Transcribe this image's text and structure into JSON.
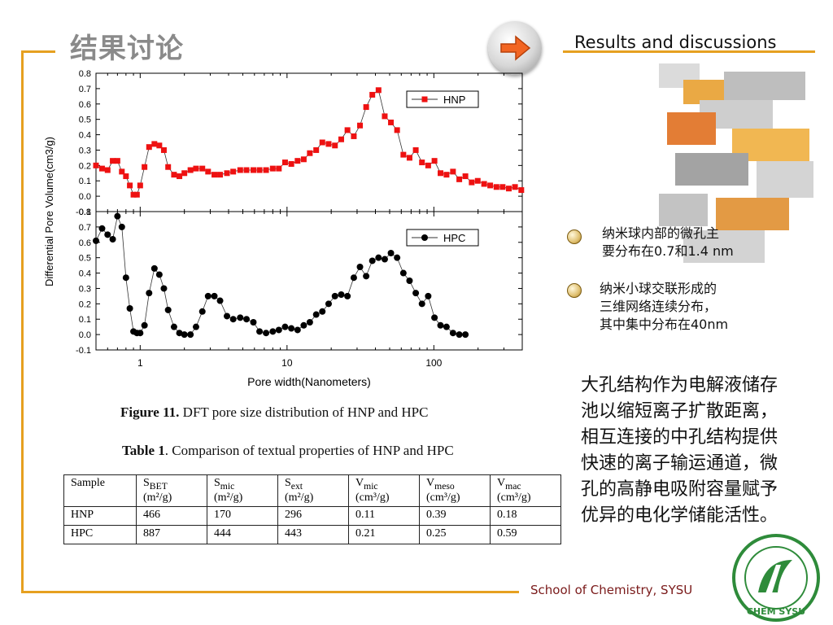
{
  "header": {
    "title_cn": "结果讨论",
    "title_en": "Results and discussions"
  },
  "colors": {
    "frame": "#e6a020",
    "hnp": "#ee1111",
    "hpc": "#000000",
    "footer": "#7a1a1a"
  },
  "icons": {
    "nav": "right-arrow-icon"
  },
  "chart_data": [
    {
      "type": "line",
      "ylabel": "Differential Pore Volume(cm3/g)",
      "xscale": "log",
      "xlim": [
        0.5,
        400
      ],
      "ylim": [
        -0.1,
        0.8
      ],
      "yticks": [
        "0.8",
        "0.7",
        "0.6",
        "0.5",
        "0.4",
        "0.3",
        "0.2",
        "0.1",
        "0.0",
        "-0.1"
      ],
      "legend": "top-right",
      "series": [
        {
          "name": "HNP",
          "marker": "square",
          "x": [
            0.5,
            0.55,
            0.6,
            0.65,
            0.7,
            0.75,
            0.8,
            0.85,
            0.9,
            0.95,
            1.0,
            1.07,
            1.15,
            1.25,
            1.35,
            1.45,
            1.55,
            1.7,
            1.85,
            2.0,
            2.2,
            2.4,
            2.65,
            2.9,
            3.2,
            3.5,
            3.9,
            4.3,
            4.8,
            5.3,
            5.9,
            6.5,
            7.2,
            8.0,
            8.8,
            9.7,
            10.7,
            11.8,
            13,
            14.3,
            15.8,
            17.4,
            19.2,
            21.2,
            23.4,
            25.8,
            28.5,
            31.4,
            34.6,
            38.1,
            42,
            46.3,
            51,
            56.2,
            62,
            68.3,
            75.3,
            83,
            91.5,
            101,
            111,
            122,
            135,
            149,
            164,
            181,
            199,
            220,
            242,
            267,
            294,
            324,
            357,
            394
          ],
          "y": [
            0.2,
            0.18,
            0.17,
            0.23,
            0.23,
            0.16,
            0.13,
            0.07,
            0.01,
            0.01,
            0.07,
            0.19,
            0.32,
            0.34,
            0.33,
            0.3,
            0.19,
            0.14,
            0.13,
            0.15,
            0.17,
            0.18,
            0.18,
            0.16,
            0.14,
            0.14,
            0.15,
            0.16,
            0.17,
            0.17,
            0.17,
            0.17,
            0.17,
            0.18,
            0.18,
            0.22,
            0.21,
            0.23,
            0.24,
            0.28,
            0.3,
            0.35,
            0.34,
            0.33,
            0.37,
            0.43,
            0.39,
            0.46,
            0.58,
            0.66,
            0.69,
            0.52,
            0.48,
            0.43,
            0.27,
            0.25,
            0.3,
            0.22,
            0.2,
            0.23,
            0.15,
            0.14,
            0.16,
            0.11,
            0.13,
            0.09,
            0.1,
            0.08,
            0.07,
            0.06,
            0.06,
            0.05,
            0.06,
            0.04
          ]
        },
        {
          "name": "HPC",
          "marker": "circle",
          "x": [
            0.5,
            0.55,
            0.6,
            0.65,
            0.7,
            0.75,
            0.8,
            0.85,
            0.9,
            0.95,
            1.0,
            1.07,
            1.15,
            1.25,
            1.35,
            1.45,
            1.55,
            1.7,
            1.85,
            2.0,
            2.2,
            2.4,
            2.65,
            2.9,
            3.2,
            3.5,
            3.9,
            4.3,
            4.8,
            5.3,
            5.9,
            6.5,
            7.2,
            8.0,
            8.8,
            9.7,
            10.7,
            11.8,
            13,
            14.3,
            15.8,
            17.4,
            19.2,
            21.2,
            23.4,
            25.8,
            28.5,
            31.4,
            34.6,
            38.1,
            42,
            46.3,
            51,
            56.2,
            62,
            68.3,
            75.3,
            83,
            91.5,
            101,
            111,
            122,
            135,
            149,
            164
          ],
          "y": [
            0.61,
            0.69,
            0.65,
            0.62,
            0.77,
            0.7,
            0.37,
            0.17,
            0.02,
            0.01,
            0.01,
            0.06,
            0.27,
            0.43,
            0.39,
            0.3,
            0.16,
            0.05,
            0.01,
            0.0,
            0.0,
            0.05,
            0.15,
            0.25,
            0.25,
            0.22,
            0.12,
            0.1,
            0.11,
            0.1,
            0.08,
            0.02,
            0.01,
            0.02,
            0.03,
            0.05,
            0.04,
            0.03,
            0.06,
            0.08,
            0.13,
            0.15,
            0.2,
            0.25,
            0.26,
            0.25,
            0.37,
            0.44,
            0.38,
            0.48,
            0.5,
            0.49,
            0.53,
            0.5,
            0.4,
            0.35,
            0.27,
            0.2,
            0.25,
            0.11,
            0.06,
            0.05,
            0.01,
            0.0,
            0.0
          ]
        }
      ],
      "xticks": [
        "1",
        "10",
        "100"
      ],
      "xlabel": "Pore width(Nanometers)"
    }
  ],
  "captions": {
    "figure_label": "Figure 11.",
    "figure_text": " DFT pore size distribution of HNP and HPC",
    "table_label": "Table 1",
    "table_text": ". Comparison of textual properties of HNP and HPC"
  },
  "table": {
    "headers": [
      {
        "main": "Sample",
        "sub": "",
        "unit": ""
      },
      {
        "main": "S",
        "sub": "BET",
        "unit": "(m²/g)"
      },
      {
        "main": "S",
        "sub": "mic",
        "unit": "(m²/g)"
      },
      {
        "main": "S",
        "sub": "ext",
        "unit": "(m²/g)"
      },
      {
        "main": "V",
        "sub": "mic",
        "unit": "(cm³/g)"
      },
      {
        "main": "V",
        "sub": "meso",
        "unit": "(cm³/g)"
      },
      {
        "main": "V",
        "sub": "mac",
        "unit": "(cm³/g)"
      }
    ],
    "rows": [
      [
        "HNP",
        "466",
        "170",
        "296",
        "0.11",
        "0.39",
        "0.18"
      ],
      [
        "HPC",
        "887",
        "444",
        "443",
        "0.21",
        "0.25",
        "0.59"
      ]
    ]
  },
  "bullets": [
    {
      "line1": "纳米球内部的微孔主",
      "line2": "要分布在0.7和1.4 nm",
      "line3": ""
    },
    {
      "line1": "纳米小球交联形成的",
      "line2": "三维网络连续分布，",
      "line3": "其中集中分布在40nm"
    }
  ],
  "paragraph": "大孔结构作为电解液储存池以缩短离子扩散距离，相互连接的中孔结构提供快速的离子输运通道，微孔的高静电吸附容量赋予优异的电化学储能活性。",
  "footer": "School of Chemistry, SYSU",
  "logo": {
    "text": "CHEM SYSU",
    "icon": "school-emblem-icon"
  }
}
